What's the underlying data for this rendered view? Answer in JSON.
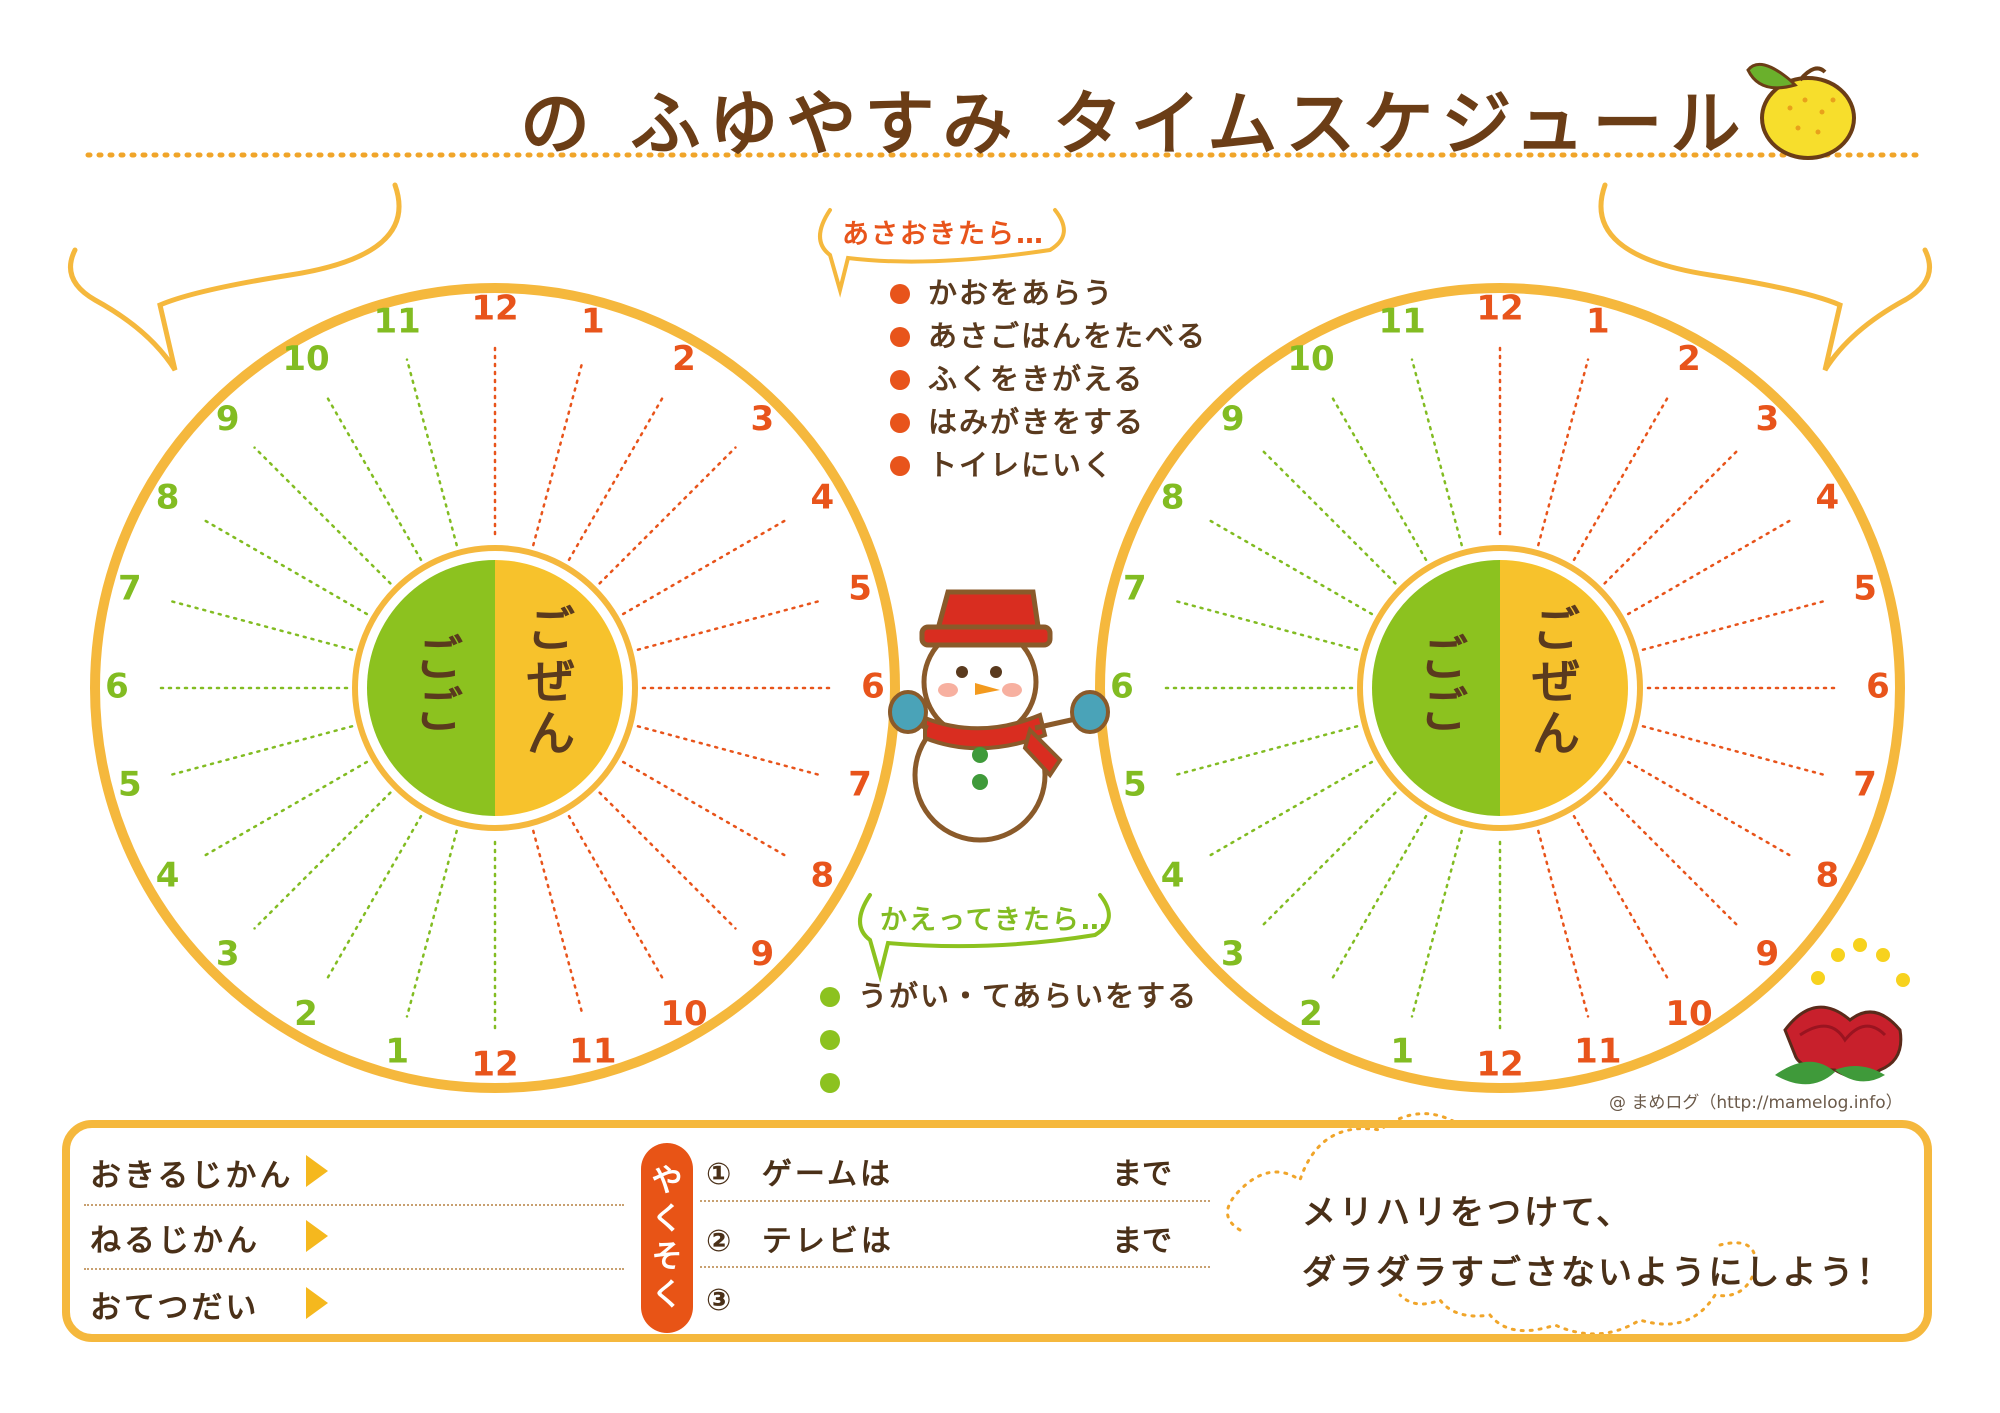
{
  "header": {
    "title": "の ふゆやすみ タイムスケジュール"
  },
  "clock": {
    "am_label": "ごぜん",
    "pm_label": "ごご",
    "right_numbers": [
      "12",
      "1",
      "2",
      "3",
      "4",
      "5",
      "6",
      "7",
      "8",
      "9",
      "10",
      "11",
      "12"
    ],
    "left_numbers": [
      "1",
      "2",
      "3",
      "4",
      "5",
      "6",
      "7",
      "8",
      "9",
      "10",
      "11"
    ],
    "colors": {
      "am": "#f7c22c",
      "pm": "#8cc21f",
      "am_number": "#e8541b",
      "pm_number": "#82bc22",
      "ring": "#f5b83d"
    }
  },
  "morning": {
    "heading": "あさおきたら…",
    "items": [
      "かおをあらう",
      "あさごはんをたべる",
      "ふくをきがえる",
      "はみがきをする",
      "トイレにいく"
    ]
  },
  "after_return": {
    "heading": "かえってきたら…",
    "items": [
      "うがい・てあらいをする",
      "",
      ""
    ]
  },
  "bottom_panel": {
    "rows": [
      "おきるじかん",
      "ねるじかん",
      "おてつだい"
    ],
    "promise_label": [
      "や",
      "く",
      "そ",
      "く"
    ],
    "rules": [
      {
        "num": "①",
        "text": "ゲームは",
        "until": "まで"
      },
      {
        "num": "②",
        "text": "テレビは",
        "until": "まで"
      },
      {
        "num": "③",
        "text": "",
        "until": ""
      }
    ],
    "slogan_line1": "メリハリをつけて、",
    "slogan_line2": "ダラダラすごさないようにしよう！"
  },
  "credit": "@ まめログ（http://mamelog.info）",
  "icons": [
    "yuzu-icon",
    "snowman-icon",
    "camellia-flower-icon"
  ]
}
